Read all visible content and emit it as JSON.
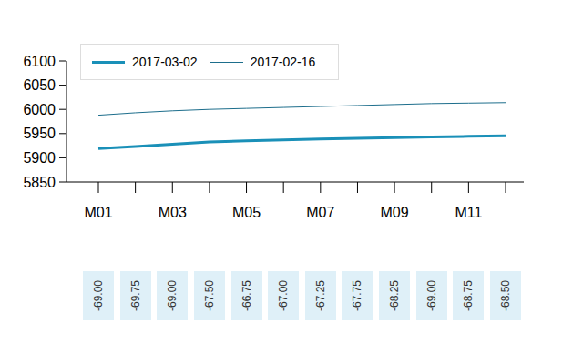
{
  "chart_data": {
    "type": "line",
    "categories": [
      "M01",
      null,
      "M03",
      null,
      "M05",
      null,
      "M07",
      null,
      "M09",
      null,
      "M11",
      null
    ],
    "series": [
      {
        "name": "2017-03-02",
        "color": "#1a90b8",
        "values": [
          5919,
          5923.25,
          5928,
          5932.5,
          5935.25,
          5937,
          5938.75,
          5940.25,
          5941.75,
          5943,
          5944.25,
          5945.5
        ]
      },
      {
        "name": "2017-02-16",
        "color": "#1d6e8c",
        "values": [
          5988,
          5993,
          5997,
          6000,
          6002,
          6004,
          6006,
          6008,
          6010,
          6012,
          6013,
          6014
        ]
      }
    ],
    "ylim": [
      5850,
      6100
    ],
    "yticks": [
      5850,
      5900,
      5950,
      6000,
      6050,
      6100
    ],
    "annotations": [
      "-69.00",
      "-69.75",
      "-69.00",
      "-67.50",
      "-66.75",
      "-67.00",
      "-67.25",
      "-67.75",
      "-68.25",
      "-69.00",
      "-68.75",
      "-68.50"
    ]
  }
}
